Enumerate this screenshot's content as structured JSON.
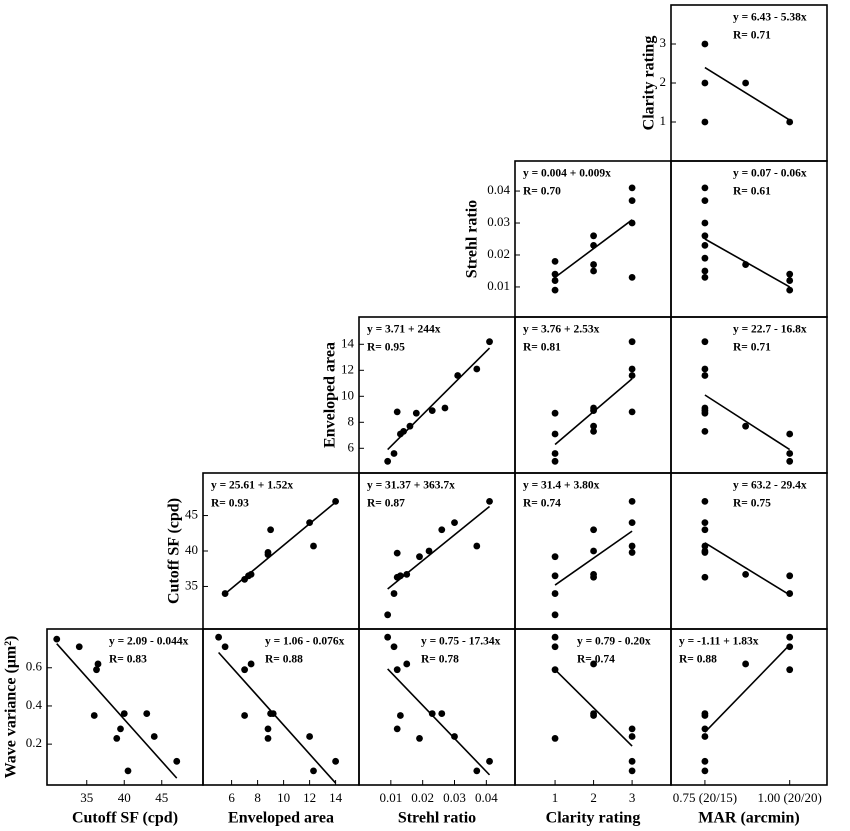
{
  "chart_data": {
    "type": "scatter_matrix",
    "color": "#000000",
    "columns": [
      {
        "label": "Cutoff SF (cpd)",
        "xlim": [
          29.7,
          50.5
        ],
        "xticks": [
          35,
          40,
          45
        ]
      },
      {
        "label": "Enveloped area",
        "xlim": [
          3.8,
          15.8
        ],
        "xticks": [
          6,
          8,
          10,
          12,
          14
        ]
      },
      {
        "label": "Strehl ratio",
        "xlim": [
          0.0,
          0.049
        ],
        "xticks": [
          0.01,
          0.02,
          0.03,
          0.04
        ]
      },
      {
        "label": "Clarity rating",
        "xlim": [
          -0.04,
          4.01
        ],
        "xticks": [
          1,
          2,
          3
        ]
      },
      {
        "label": "MAR (arcmin)",
        "xlim": [
          0.65,
          1.11
        ],
        "xticks": [
          {
            "value": 0.75,
            "label": "0.75 (20/15)"
          },
          {
            "value": 1.0,
            "label": "1.00 (20/20)"
          }
        ]
      }
    ],
    "rows": [
      {
        "label": "Clarity rating",
        "ylim": [
          0,
          4
        ],
        "yticks": [
          1,
          2,
          3
        ]
      },
      {
        "label": "Strehl ratio",
        "ylim": [
          0.0006,
          0.0494
        ],
        "yticks": [
          0.01,
          0.02,
          0.03,
          0.04
        ]
      },
      {
        "label": "Enveloped area",
        "ylim": [
          4.1,
          16.1
        ],
        "yticks": [
          6,
          8,
          10,
          12,
          14
        ]
      },
      {
        "label": "Cutoff SF (cpd)",
        "ylim": [
          29,
          51
        ],
        "yticks": [
          35,
          40,
          45
        ]
      },
      {
        "label": "Wave variance (μm²)",
        "ylim": [
          -0.014,
          0.803
        ],
        "yticks": [
          0.2,
          0.4,
          0.6
        ]
      }
    ],
    "panels": [
      {
        "row": 0,
        "col": 4,
        "x": [
          0.75,
          0.75,
          0.75,
          0.87,
          1.0
        ],
        "values": [
          3,
          2,
          1,
          2,
          1
        ],
        "intercept": 6.43,
        "slope": -5.38,
        "equation": "y = 6.43 - 5.38x",
        "r_label": "R= 0.71"
      },
      {
        "row": 1,
        "col": 3,
        "x": [
          1,
          1,
          1,
          1,
          2,
          2,
          2,
          2,
          3,
          3,
          3,
          3
        ],
        "values": [
          0.018,
          0.014,
          0.012,
          0.009,
          0.026,
          0.023,
          0.017,
          0.015,
          0.041,
          0.037,
          0.03,
          0.013
        ],
        "intercept": 0.004,
        "slope": 0.009,
        "equation": "y = 0.004 + 0.009x",
        "r_label": "R= 0.70"
      },
      {
        "row": 1,
        "col": 4,
        "x": [
          0.75,
          0.75,
          0.75,
          0.75,
          0.75,
          0.75,
          0.75,
          0.75,
          0.87,
          1.0,
          1.0,
          1.0
        ],
        "values": [
          0.041,
          0.037,
          0.03,
          0.026,
          0.023,
          0.019,
          0.015,
          0.013,
          0.017,
          0.014,
          0.012,
          0.009
        ],
        "intercept": 0.07,
        "slope": -0.06,
        "equation": "y = 0.07 - 0.06x",
        "r_label": "R= 0.61"
      },
      {
        "row": 2,
        "col": 2,
        "x": [
          0.009,
          0.011,
          0.012,
          0.013,
          0.014,
          0.016,
          0.018,
          0.023,
          0.027,
          0.031,
          0.037,
          0.041
        ],
        "values": [
          5,
          5.6,
          8.8,
          7.1,
          7.3,
          7.7,
          8.7,
          8.9,
          9.1,
          11.6,
          12.1,
          14.2
        ],
        "intercept": 3.71,
        "slope": 244,
        "equation": "y = 3.71 + 244x",
        "r_label": "R= 0.95"
      },
      {
        "row": 2,
        "col": 3,
        "x": [
          1,
          1,
          1,
          1,
          2,
          2,
          2,
          2,
          3,
          3,
          3,
          3
        ],
        "values": [
          8.7,
          7.1,
          5.6,
          5,
          9.1,
          8.9,
          7.7,
          7.3,
          14.2,
          12.1,
          11.6,
          8.8
        ],
        "intercept": 3.76,
        "slope": 2.53,
        "equation": "y = 3.76 + 2.53x",
        "r_label": "R= 0.81"
      },
      {
        "row": 2,
        "col": 4,
        "x": [
          0.75,
          0.75,
          0.75,
          0.75,
          0.75,
          0.75,
          0.75,
          0.87,
          1.0,
          1.0,
          1.0
        ],
        "values": [
          14.2,
          12.1,
          11.6,
          9.1,
          8.9,
          8.7,
          7.3,
          7.7,
          7.1,
          5.6,
          5
        ],
        "intercept": 22.7,
        "slope": -16.8,
        "equation": "y = 22.7 - 16.8x",
        "r_label": "R= 0.71"
      },
      {
        "row": 3,
        "col": 1,
        "x": [
          5.5,
          7,
          7.3,
          7.5,
          8.8,
          8.8,
          9,
          12,
          12.3,
          14
        ],
        "values": [
          34,
          36,
          36.5,
          36.7,
          39.5,
          39.8,
          43,
          44,
          40.7,
          47
        ],
        "intercept": 25.61,
        "slope": 1.52,
        "equation": "y = 25.61 + 1.52x",
        "r_label": "R= 0.93"
      },
      {
        "row": 3,
        "col": 2,
        "x": [
          0.009,
          0.011,
          0.012,
          0.013,
          0.012,
          0.015,
          0.019,
          0.022,
          0.026,
          0.03,
          0.037,
          0.041
        ],
        "values": [
          31,
          34,
          36.3,
          36.5,
          39.7,
          36.7,
          39.2,
          40,
          43,
          44,
          40.7,
          47
        ],
        "intercept": 31.37,
        "slope": 363.7,
        "equation": "y = 31.37 + 363.7x",
        "r_label": "R= 0.87"
      },
      {
        "row": 3,
        "col": 3,
        "x": [
          1,
          1,
          1,
          1,
          2,
          2,
          2,
          2,
          3,
          3,
          3,
          3
        ],
        "values": [
          39.2,
          36.5,
          34,
          31,
          43,
          40,
          36.7,
          36.3,
          47,
          44,
          40.7,
          39.8
        ],
        "intercept": 31.4,
        "slope": 3.8,
        "equation": "y = 31.4 + 3.80x",
        "r_label": "R= 0.74"
      },
      {
        "row": 3,
        "col": 4,
        "x": [
          0.75,
          0.75,
          0.75,
          0.75,
          0.75,
          0.75,
          0.75,
          0.87,
          1.0,
          1.0
        ],
        "values": [
          47,
          44,
          43,
          40.7,
          40,
          39.8,
          36.3,
          36.7,
          36.5,
          34
        ],
        "intercept": 63.2,
        "slope": -29.4,
        "equation": "y = 63.2 - 29.4x",
        "r_label": "R= 0.75"
      },
      {
        "row": 4,
        "col": 0,
        "x": [
          31,
          34,
          36.5,
          36.3,
          36,
          39,
          39.5,
          40,
          43,
          44,
          40.5,
          47
        ],
        "values": [
          0.75,
          0.71,
          0.62,
          0.59,
          0.35,
          0.23,
          0.28,
          0.36,
          0.36,
          0.24,
          0.06,
          0.11
        ],
        "intercept": 2.09,
        "slope": -0.044,
        "equation": "y = 2.09 - 0.044x",
        "r_label": "R= 0.83"
      },
      {
        "row": 4,
        "col": 1,
        "x": [
          5,
          5.5,
          7,
          7.5,
          7,
          8.8,
          8.8,
          9,
          9.2,
          12,
          12.3,
          14
        ],
        "values": [
          0.76,
          0.71,
          0.59,
          0.62,
          0.35,
          0.23,
          0.28,
          0.36,
          0.36,
          0.24,
          0.06,
          0.11
        ],
        "intercept": 1.06,
        "slope": -0.076,
        "equation": "y = 1.06 - 0.076x",
        "r_label": "R= 0.88"
      },
      {
        "row": 4,
        "col": 2,
        "x": [
          0.009,
          0.011,
          0.012,
          0.015,
          0.013,
          0.012,
          0.019,
          0.023,
          0.026,
          0.03,
          0.037,
          0.041
        ],
        "values": [
          0.76,
          0.71,
          0.59,
          0.62,
          0.35,
          0.28,
          0.23,
          0.36,
          0.36,
          0.24,
          0.06,
          0.11
        ],
        "intercept": 0.75,
        "slope": -17.34,
        "equation": "y = 0.75 - 17.34x",
        "r_label": "R= 0.78"
      },
      {
        "row": 4,
        "col": 3,
        "x": [
          1,
          1,
          1,
          1,
          2,
          2,
          2,
          3,
          3,
          3,
          3
        ],
        "values": [
          0.76,
          0.71,
          0.59,
          0.23,
          0.62,
          0.36,
          0.35,
          0.28,
          0.24,
          0.11,
          0.06
        ],
        "intercept": 0.79,
        "slope": -0.2,
        "equation": "y = 0.79 - 0.20x",
        "r_label": "R= 0.74"
      },
      {
        "row": 4,
        "col": 4,
        "x": [
          0.75,
          0.75,
          0.75,
          0.75,
          0.75,
          0.75,
          0.87,
          1.0,
          1.0,
          1.0
        ],
        "values": [
          0.36,
          0.35,
          0.28,
          0.24,
          0.11,
          0.06,
          0.62,
          0.76,
          0.71,
          0.59
        ],
        "intercept": -1.11,
        "slope": 1.83,
        "equation": "y = -1.11 + 1.83x",
        "r_label": "R= 0.88"
      }
    ]
  }
}
